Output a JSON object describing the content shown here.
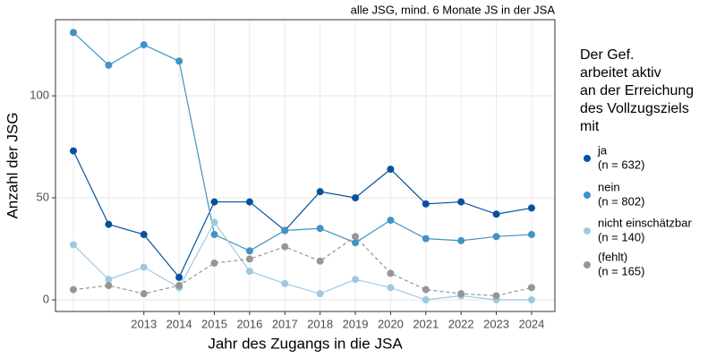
{
  "chart_data": {
    "type": "line",
    "subtitle": "alle JSG, mind. 6 Monate JS in der JSA",
    "x_label": "Jahr des Zugangs in die JSA",
    "y_label": "Anzahl der JSG",
    "categories": [
      null,
      null,
      "2013",
      "2014",
      "2015",
      "2016",
      "2017",
      "2018",
      "2019",
      "2020",
      "2021",
      "2022",
      "2023",
      "2024"
    ],
    "ylim": [
      -5.7,
      137.3
    ],
    "yticks": [
      0,
      50,
      100
    ],
    "grid": true,
    "legend_title": [
      "Der Gef.",
      "arbeitet aktiv",
      "an der Erreichung",
      "des Vollzugsziels",
      "mit"
    ],
    "legend_position": "right",
    "series": [
      {
        "name": "ja",
        "n_label": "(n = 632)",
        "color": "#08519c",
        "linestyle": "solid",
        "values": [
          73,
          37,
          32,
          11,
          48,
          48,
          34,
          53,
          50,
          64,
          47,
          48,
          42,
          45
        ]
      },
      {
        "name": "nein",
        "n_label": "(n = 802)",
        "color": "#4292c6",
        "linestyle": "solid",
        "values": [
          131,
          115,
          125,
          117,
          32,
          24,
          34,
          35,
          28,
          39,
          30,
          29,
          31,
          32
        ]
      },
      {
        "name": "nicht einschätzbar",
        "n_label": "(n = 140)",
        "color": "#9ecae1",
        "linestyle": "solid",
        "values": [
          27,
          10,
          16,
          6,
          38,
          14,
          8,
          3,
          10,
          6,
          0,
          2,
          0,
          0
        ]
      },
      {
        "name": "(fehlt)",
        "n_label": "(n = 165)",
        "color": "#969696",
        "linestyle": "dashed",
        "values": [
          5,
          7,
          3,
          7,
          18,
          20,
          26,
          19,
          31,
          13,
          5,
          3,
          2,
          6
        ]
      }
    ]
  }
}
